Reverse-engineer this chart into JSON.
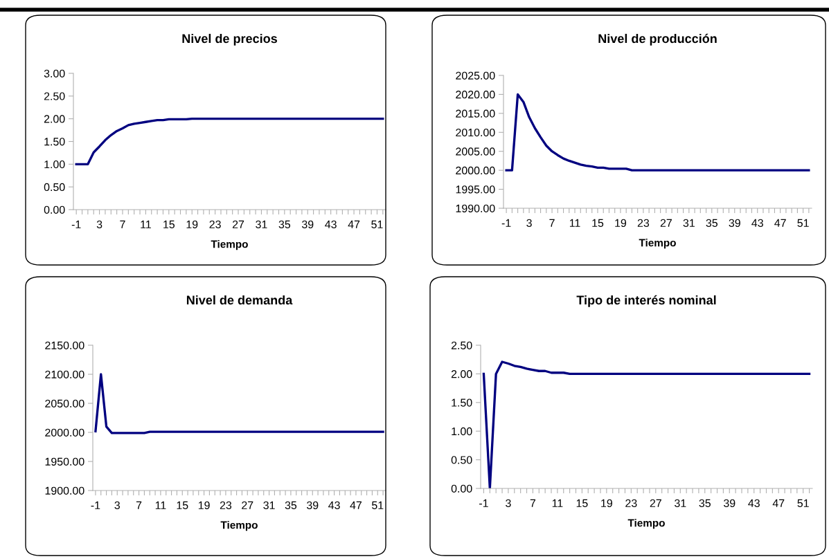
{
  "chart_data": [
    {
      "type": "line",
      "title": "Nivel de precios",
      "xlabel": "Tiempo",
      "legend": false,
      "categories": [
        "-1",
        null,
        null,
        null,
        "3",
        null,
        null,
        null,
        "7",
        null,
        null,
        null,
        "11",
        null,
        null,
        null,
        "15",
        null,
        null,
        null,
        "19",
        null,
        null,
        null,
        "23",
        null,
        null,
        null,
        "27",
        null,
        null,
        null,
        "31",
        null,
        null,
        null,
        "35",
        null,
        null,
        null,
        "39",
        null,
        null,
        null,
        "43",
        null,
        null,
        null,
        "47",
        null,
        null,
        null,
        "51",
        null
      ],
      "series": [
        {
          "color": "#000080",
          "values": [
            1.0,
            1.0,
            1.0,
            1.26,
            1.39,
            1.53,
            1.64,
            1.73,
            1.79,
            1.86,
            1.89,
            1.91,
            1.93,
            1.95,
            1.97,
            1.97,
            1.99,
            1.99,
            1.99,
            1.99,
            2.0,
            2.0,
            2.0,
            2.0,
            2.0,
            2.0,
            2.0,
            2.0,
            2.0,
            2.0,
            2.0,
            2.0,
            2.0,
            2.0,
            2.0,
            2.0,
            2.0,
            2.0,
            2.0,
            2.0,
            2.0,
            2.0,
            2.0,
            2.0,
            2.0,
            2.0,
            2.0,
            2.0,
            2.0,
            2.0,
            2.0,
            2.0,
            2.0,
            2.0
          ]
        }
      ],
      "ylim": [
        0,
        3
      ],
      "yticks": [
        {
          "value": 0,
          "label": "0.00"
        },
        {
          "value": 0.5,
          "label": "0.50"
        },
        {
          "value": 1,
          "label": "1.00"
        },
        {
          "value": 1.5,
          "label": "1.50"
        },
        {
          "value": 2,
          "label": "2.00"
        },
        {
          "value": 2.5,
          "label": "2.50"
        },
        {
          "value": 3,
          "label": "3.00"
        }
      ]
    },
    {
      "type": "line",
      "title": "Nivel de producción",
      "xlabel": "Tiempo",
      "legend": false,
      "categories": [
        "-1",
        null,
        null,
        null,
        "3",
        null,
        null,
        null,
        "7",
        null,
        null,
        null,
        "11",
        null,
        null,
        null,
        "15",
        null,
        null,
        null,
        "19",
        null,
        null,
        null,
        "23",
        null,
        null,
        null,
        "27",
        null,
        null,
        null,
        "31",
        null,
        null,
        null,
        "35",
        null,
        null,
        null,
        "39",
        null,
        null,
        null,
        "43",
        null,
        null,
        null,
        "47",
        null,
        null,
        null,
        "51",
        null
      ],
      "series": [
        {
          "color": "#000080",
          "values": [
            2000.0,
            2000.0,
            2020.0,
            2018.0,
            2014.0,
            2011.1,
            2008.7,
            2006.5,
            2005.0,
            2004.0,
            2003.1,
            2002.5,
            2002.0,
            2001.5,
            2001.2,
            2001.0,
            2000.7,
            2000.7,
            2000.4,
            2000.4,
            2000.4,
            2000.4,
            2000.0,
            2000.0,
            2000.0,
            2000.0,
            2000.0,
            2000.0,
            2000.0,
            2000.0,
            2000.0,
            2000.0,
            2000.0,
            2000.0,
            2000.0,
            2000.0,
            2000.0,
            2000.0,
            2000.0,
            2000.0,
            2000.0,
            2000.0,
            2000.0,
            2000.0,
            2000.0,
            2000.0,
            2000.0,
            2000.0,
            2000.0,
            2000.0,
            2000.0,
            2000.0,
            2000.0,
            2000.0
          ]
        }
      ],
      "ylim": [
        1990,
        2025
      ],
      "yticks": [
        {
          "value": 1990,
          "label": "1990.00"
        },
        {
          "value": 1995,
          "label": "1995.00"
        },
        {
          "value": 2000,
          "label": "2000.00"
        },
        {
          "value": 2005,
          "label": "2005.00"
        },
        {
          "value": 2010,
          "label": "2010.00"
        },
        {
          "value": 2015,
          "label": "2015.00"
        },
        {
          "value": 2020,
          "label": "2020.00"
        },
        {
          "value": 2025,
          "label": "2025.00"
        }
      ]
    },
    {
      "type": "line",
      "title": "Nivel de demanda",
      "xlabel": "Tiempo",
      "legend": false,
      "categories": [
        "-1",
        null,
        null,
        null,
        "3",
        null,
        null,
        null,
        "7",
        null,
        null,
        null,
        "11",
        null,
        null,
        null,
        "15",
        null,
        null,
        null,
        "19",
        null,
        null,
        null,
        "23",
        null,
        null,
        null,
        "27",
        null,
        null,
        null,
        "31",
        null,
        null,
        null,
        "35",
        null,
        null,
        null,
        "39",
        null,
        null,
        null,
        "43",
        null,
        null,
        null,
        "47",
        null,
        null,
        null,
        "51",
        null
      ],
      "series": [
        {
          "color": "#000080",
          "values": [
            2002,
            2100,
            2010,
            1999,
            1999,
            1999,
            1999,
            1999,
            1999,
            1999,
            2001,
            2001,
            2001,
            2001,
            2001,
            2001,
            2001,
            2001,
            2001,
            2001,
            2001,
            2001,
            2001,
            2001,
            2001,
            2001,
            2001,
            2001,
            2001,
            2001,
            2001,
            2001,
            2001,
            2001,
            2001,
            2001,
            2001,
            2001,
            2001,
            2001,
            2001,
            2001,
            2001,
            2001,
            2001,
            2001,
            2001,
            2001,
            2001,
            2001,
            2001,
            2001,
            2001,
            2001
          ]
        }
      ],
      "ylim": [
        1900,
        2150
      ],
      "yticks": [
        {
          "value": 1900,
          "label": "1900.00"
        },
        {
          "value": 1950,
          "label": "1950.00"
        },
        {
          "value": 2000,
          "label": "2000.00"
        },
        {
          "value": 2050,
          "label": "2050.00"
        },
        {
          "value": 2100,
          "label": "2100.00"
        },
        {
          "value": 2150,
          "label": "2150.00"
        }
      ]
    },
    {
      "type": "line",
      "title": "Tipo de interés nominal",
      "xlabel": "Tiempo",
      "legend": false,
      "categories": [
        "-1",
        null,
        null,
        null,
        "3",
        null,
        null,
        null,
        "7",
        null,
        null,
        null,
        "11",
        null,
        null,
        null,
        "15",
        null,
        null,
        null,
        "19",
        null,
        null,
        null,
        "23",
        null,
        null,
        null,
        "27",
        null,
        null,
        null,
        "31",
        null,
        null,
        null,
        "35",
        null,
        null,
        null,
        "39",
        null,
        null,
        null,
        "43",
        null,
        null,
        null,
        "47",
        null,
        null,
        null,
        "51",
        null
      ],
      "series": [
        {
          "color": "#000080",
          "values": [
            2.0,
            0.0,
            2.0,
            2.21,
            2.18,
            2.14,
            2.12,
            2.09,
            2.07,
            2.05,
            2.05,
            2.02,
            2.02,
            2.02,
            2.0,
            2.0,
            2.0,
            2.0,
            2.0,
            2.0,
            2.0,
            2.0,
            2.0,
            2.0,
            2.0,
            2.0,
            2.0,
            2.0,
            2.0,
            2.0,
            2.0,
            2.0,
            2.0,
            2.0,
            2.0,
            2.0,
            2.0,
            2.0,
            2.0,
            2.0,
            2.0,
            2.0,
            2.0,
            2.0,
            2.0,
            2.0,
            2.0,
            2.0,
            2.0,
            2.0,
            2.0,
            2.0,
            2.0,
            2.0
          ]
        }
      ],
      "ylim": [
        0,
        2.5
      ],
      "yticks": [
        {
          "value": 0,
          "label": "0.00"
        },
        {
          "value": 0.5,
          "label": "0.50"
        },
        {
          "value": 1,
          "label": "1.00"
        },
        {
          "value": 1.5,
          "label": "1.50"
        },
        {
          "value": 2,
          "label": "2.00"
        },
        {
          "value": 2.5,
          "label": "2.50"
        }
      ]
    }
  ]
}
